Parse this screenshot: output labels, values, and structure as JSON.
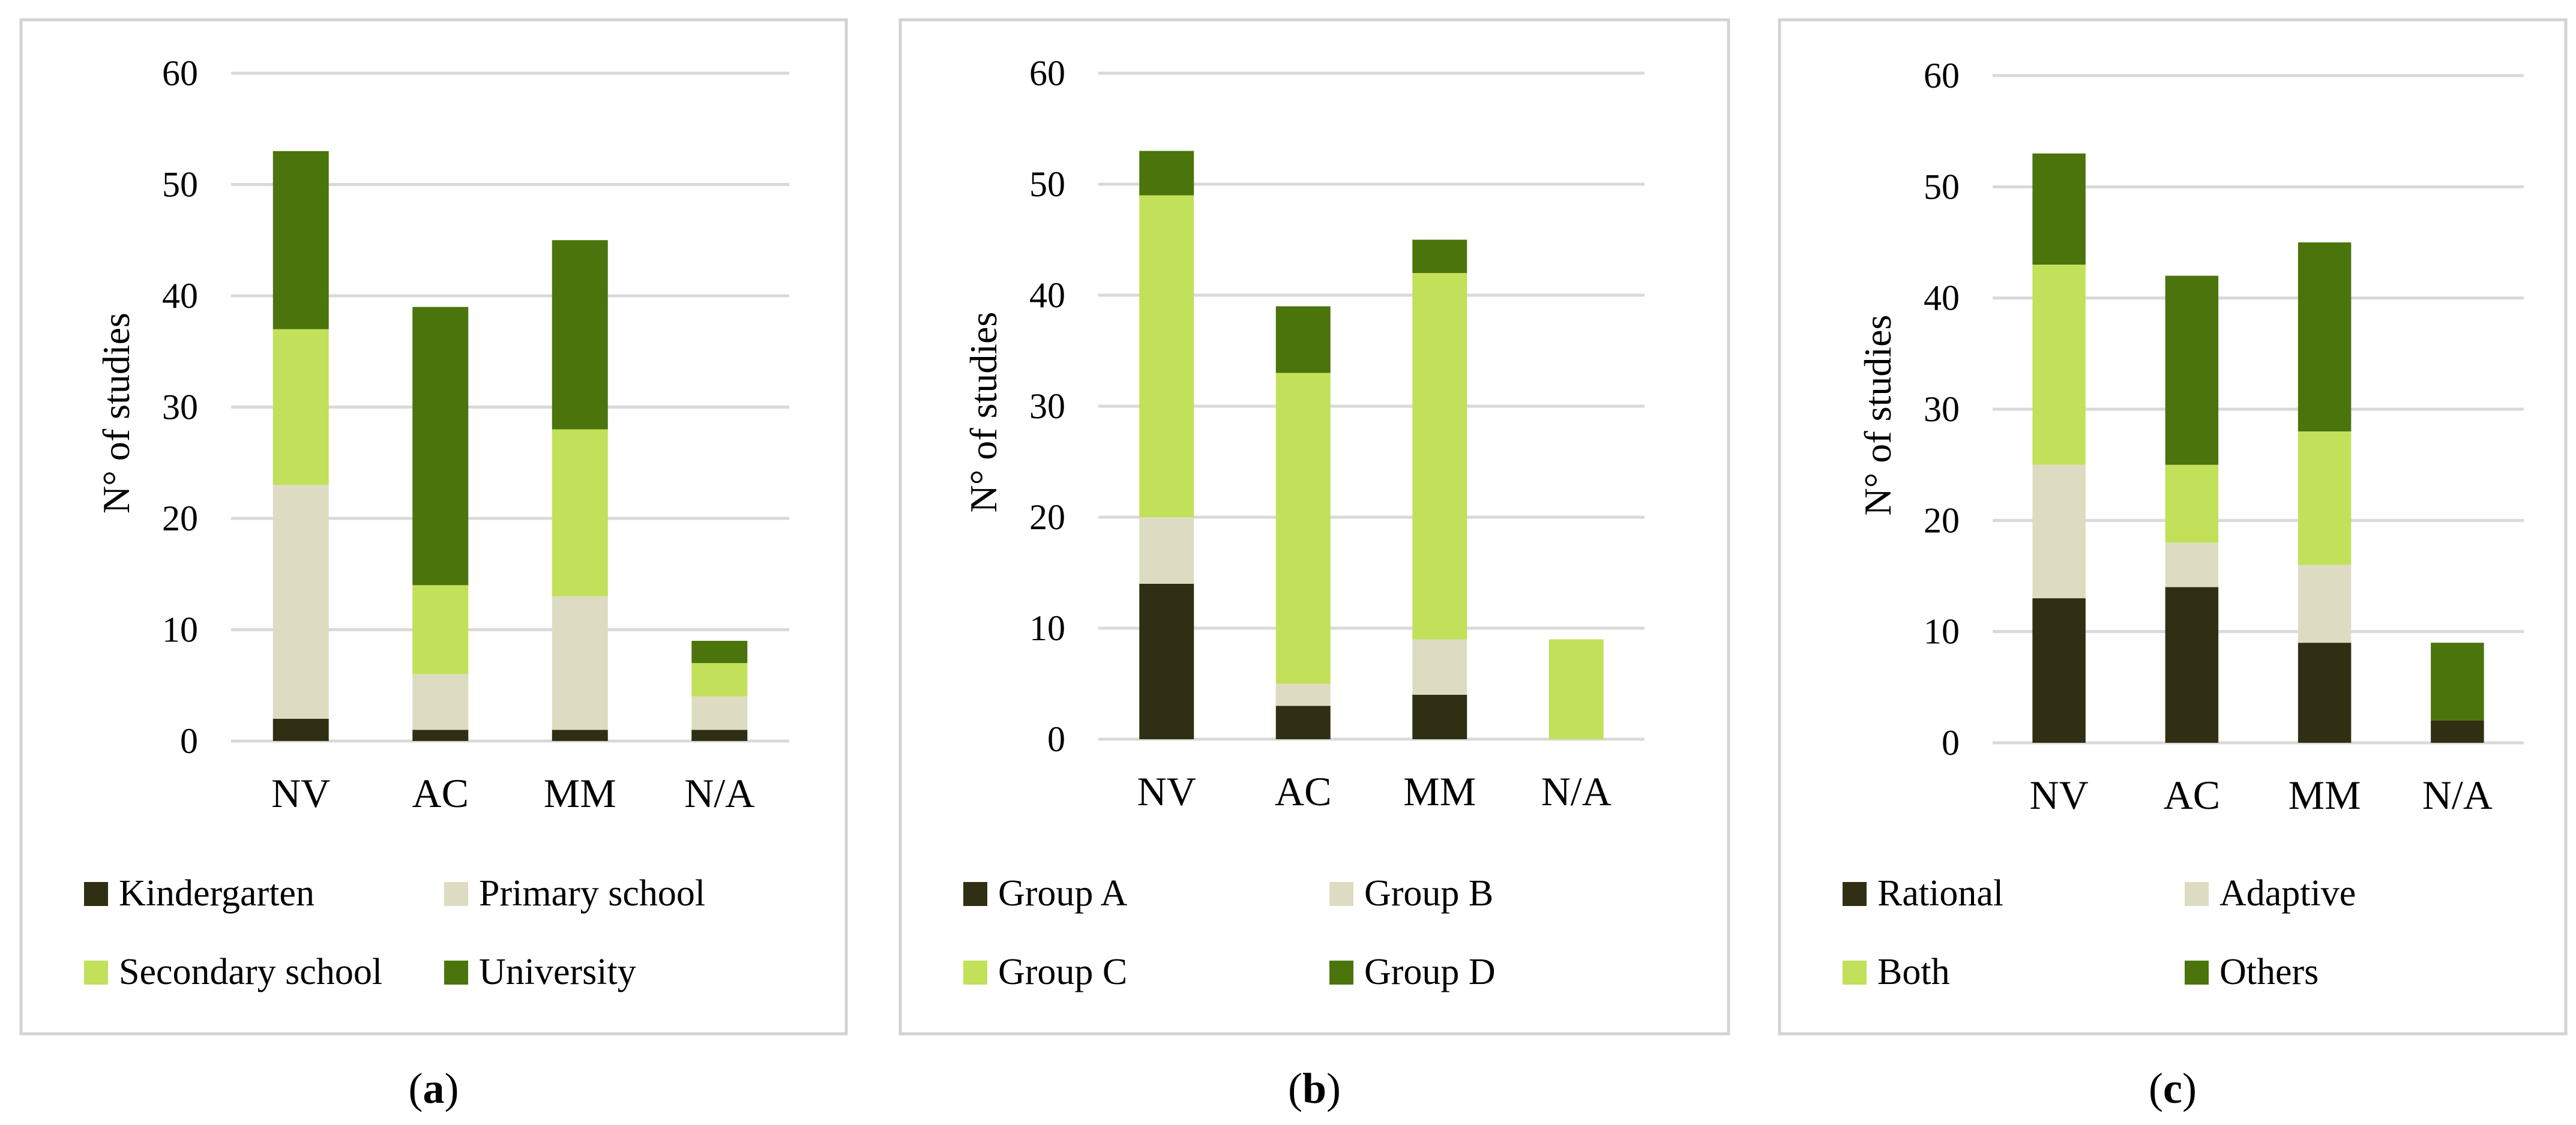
{
  "chart_data": [
    {
      "type": "bar",
      "stacked": true,
      "panel": "a",
      "ylabel": "N° of studies",
      "ylim": [
        0,
        60
      ],
      "yticks": [
        "0",
        "10",
        "20",
        "30",
        "40",
        "50",
        "60"
      ],
      "categories": [
        "NV",
        "AC",
        "MM",
        "N/A"
      ],
      "series": [
        {
          "name": "Kindergarten",
          "color": "#302f13",
          "values": [
            2,
            1,
            1,
            1
          ]
        },
        {
          "name": "Primary school",
          "color": "#dddcc3",
          "values": [
            21,
            5,
            12,
            3
          ]
        },
        {
          "name": "Secondary school",
          "color": "#c2e05a",
          "values": [
            14,
            8,
            15,
            3
          ]
        },
        {
          "name": "University",
          "color": "#4b740d",
          "values": [
            16,
            25,
            17,
            2
          ]
        }
      ],
      "legend": "bottom",
      "caption": {
        "open": "(",
        "letter": "a",
        "close": ")"
      }
    },
    {
      "type": "bar",
      "stacked": true,
      "panel": "b",
      "ylabel": "N° of studies",
      "ylim": [
        0,
        60
      ],
      "yticks": [
        "0",
        "10",
        "20",
        "30",
        "40",
        "50",
        "60"
      ],
      "categories": [
        "NV",
        "AC",
        "MM",
        "N/A"
      ],
      "series": [
        {
          "name": "Group A",
          "color": "#302f13",
          "values": [
            14,
            3,
            4,
            0
          ]
        },
        {
          "name": "Group B",
          "color": "#dddcc3",
          "values": [
            6,
            2,
            5,
            0
          ]
        },
        {
          "name": "Group C",
          "color": "#c2e05a",
          "values": [
            29,
            28,
            33,
            9
          ]
        },
        {
          "name": "Group D",
          "color": "#4b740d",
          "values": [
            4,
            6,
            3,
            0
          ]
        }
      ],
      "legend": "bottom",
      "caption": {
        "open": "(",
        "letter": "b",
        "close": ")"
      }
    },
    {
      "type": "bar",
      "stacked": true,
      "panel": "c",
      "ylabel": "N° of studies",
      "ylim": [
        0,
        60
      ],
      "yticks": [
        "0",
        "10",
        "20",
        "30",
        "40",
        "50",
        "60"
      ],
      "categories": [
        "NV",
        "AC",
        "MM",
        "N/A"
      ],
      "series": [
        {
          "name": "Rational",
          "color": "#302f13",
          "values": [
            13,
            14,
            9,
            2
          ]
        },
        {
          "name": "Adaptive",
          "color": "#dddcc3",
          "values": [
            12,
            4,
            7,
            0
          ]
        },
        {
          "name": "Both",
          "color": "#c2e05a",
          "values": [
            18,
            7,
            12,
            0
          ]
        },
        {
          "name": "Others",
          "color": "#4b740d",
          "values": [
            10,
            17,
            17,
            7
          ]
        }
      ],
      "legend": "bottom",
      "caption": {
        "open": "(",
        "letter": "c",
        "close": ")"
      }
    }
  ]
}
